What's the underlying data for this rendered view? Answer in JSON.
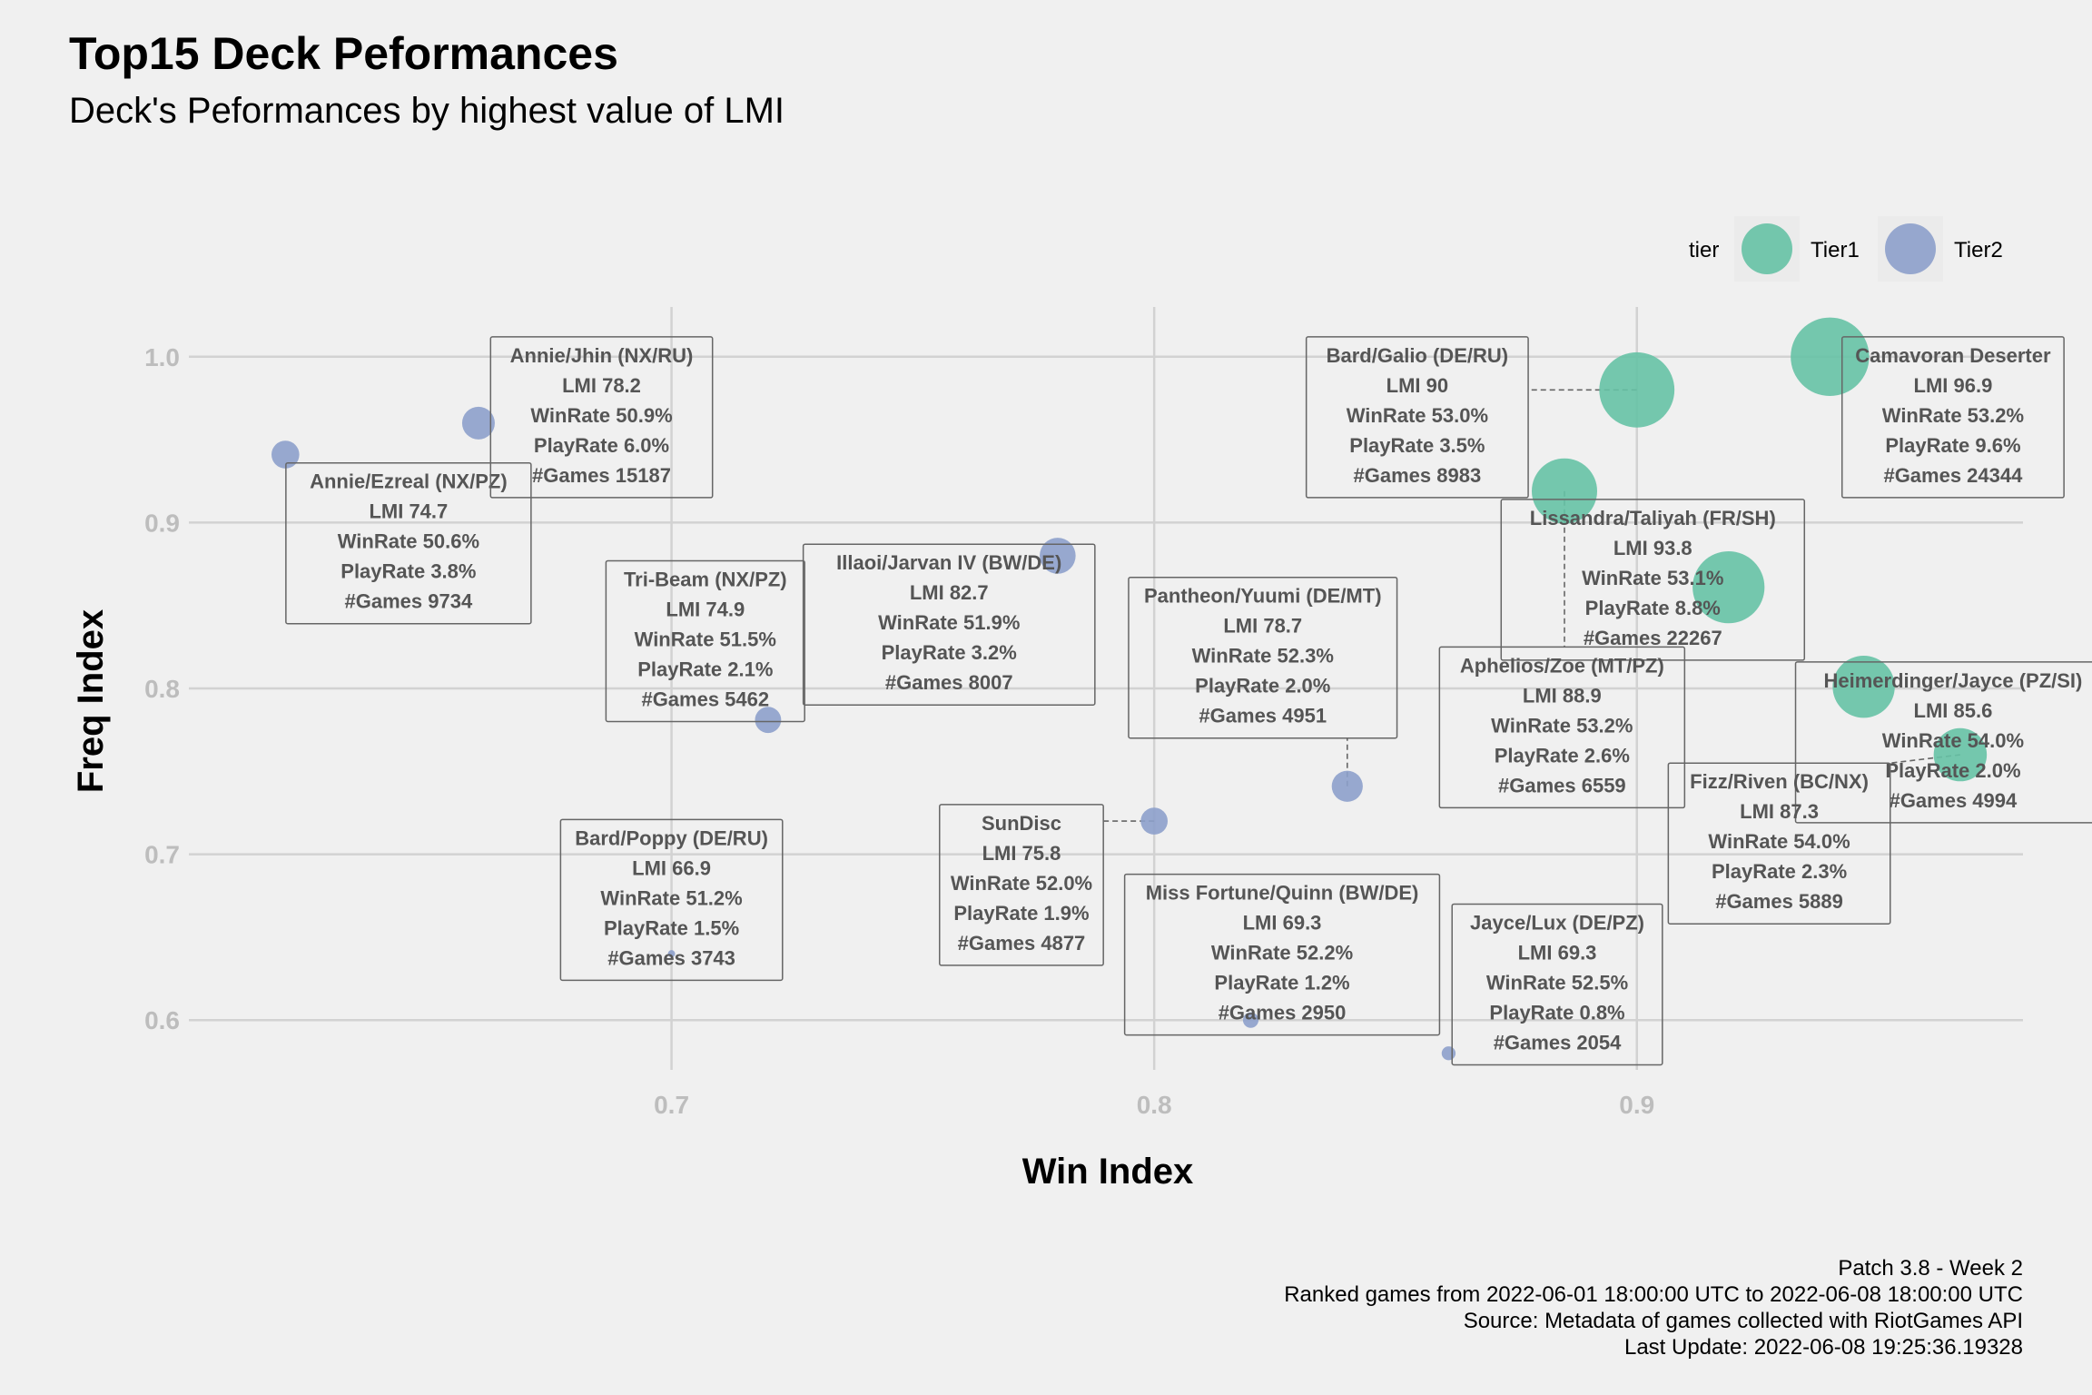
{
  "chart_data": {
    "type": "scatter",
    "title": "Top15 Deck Peformances",
    "subtitle": "Deck's Peformances by highest value of LMI",
    "xlabel": "Win Index",
    "ylabel": "Freq Index",
    "xlim": [
      0.6,
      0.98
    ],
    "ylim": [
      0.57,
      1.03
    ],
    "xticks": [
      0.7,
      0.8,
      0.9
    ],
    "yticks": [
      0.6,
      0.7,
      0.8,
      0.9,
      1.0
    ],
    "xtick_labels": [
      "0.7",
      "0.8",
      "0.9"
    ],
    "ytick_labels": [
      "0.6",
      "0.7",
      "0.8",
      "0.9",
      "1.0"
    ],
    "grid": true,
    "legend": {
      "title": "tier",
      "placement": "top-right",
      "items": [
        {
          "name": "Tier1",
          "color": "#66c2a5"
        },
        {
          "name": "Tier2",
          "color": "#8da0cb"
        }
      ]
    },
    "size_variable": "PlayRate",
    "points": [
      {
        "deck": "Camavoran Deserter",
        "tier": "Tier1",
        "x": 0.94,
        "y": 1.0,
        "lmi": "LMI 96.9",
        "winrate": "WinRate 53.2%",
        "playrate": "PlayRate 9.6%",
        "games": "#Games 24344",
        "size": 9.6,
        "lx": 0.9655,
        "ly": 0.9635
      },
      {
        "deck": "Bard/Galio (DE/RU)",
        "tier": "Tier1",
        "x": 0.9,
        "y": 0.98,
        "lmi": "LMI 90",
        "winrate": "WinRate 53.0%",
        "playrate": "PlayRate 3.5%",
        "games": "#Games 8983",
        "size": 9.2,
        "lx": 0.8545,
        "ly": 0.9635
      },
      {
        "deck": "Lissandra/Taliyah (FR/SH)",
        "tier": "Tier1",
        "x": 0.919,
        "y": 0.861,
        "lmi": "LMI 93.8",
        "winrate": "WinRate 53.1%",
        "playrate": "PlayRate 8.8%",
        "games": "#Games 22267",
        "size": 8.8,
        "lx": 0.9033,
        "ly": 0.8655
      },
      {
        "deck": "Heimerdinger/Jayce (PZ/SI)",
        "tier": "Tier1",
        "x": 0.947,
        "y": 0.801,
        "lmi": "LMI 85.6",
        "winrate": "WinRate 54.0%",
        "playrate": "PlayRate 2.0%",
        "games": "#Games 4994",
        "size": 7.6,
        "lx": 0.9655,
        "ly": 0.7675
      },
      {
        "deck": "Aphelios/Zoe (MT/PZ)",
        "tier": "Tier1",
        "x": 0.885,
        "y": 0.919,
        "lmi": "LMI 88.9",
        "winrate": "WinRate 53.2%",
        "playrate": "PlayRate 2.6%",
        "games": "#Games 6559",
        "size": 8.0,
        "lx": 0.8845,
        "ly": 0.7765
      },
      {
        "deck": "Fizz/Riven (BC/NX)",
        "tier": "Tier1",
        "x": 0.967,
        "y": 0.76,
        "lmi": "LMI 87.3",
        "winrate": "WinRate 54.0%",
        "playrate": "PlayRate 2.3%",
        "games": "#Games 5889",
        "size": 6.5,
        "lx": 0.9295,
        "ly": 0.7065
      },
      {
        "deck": "Annie/Ezreal (NX/PZ)",
        "tier": "Tier2",
        "x": 0.62,
        "y": 0.941,
        "lmi": "LMI 74.7",
        "winrate": "WinRate 50.6%",
        "playrate": "PlayRate 3.8%",
        "games": "#Games 9734",
        "size": 3.4,
        "lx": 0.6455,
        "ly": 0.8875
      },
      {
        "deck": "Annie/Jhin (NX/RU)",
        "tier": "Tier2",
        "x": 0.66,
        "y": 0.96,
        "lmi": "LMI 78.2",
        "winrate": "WinRate 50.9%",
        "playrate": "PlayRate 6.0%",
        "games": "#Games 15187",
        "size": 4.0,
        "lx": 0.6855,
        "ly": 0.9635
      },
      {
        "deck": "Tri-Beam (NX/PZ)",
        "tier": "Tier2",
        "x": 0.72,
        "y": 0.781,
        "lmi": "LMI 74.9",
        "winrate": "WinRate 51.5%",
        "playrate": "PlayRate 2.1%",
        "games": "#Games 5462",
        "size": 3.2,
        "lx": 0.707,
        "ly": 0.8285
      },
      {
        "deck": "Illaoi/Jarvan IV (BW/DE)",
        "tier": "Tier2",
        "x": 0.78,
        "y": 0.88,
        "lmi": "LMI 82.7",
        "winrate": "WinRate 51.9%",
        "playrate": "PlayRate 3.2%",
        "games": "#Games 8007",
        "size": 4.4,
        "lx": 0.7575,
        "ly": 0.8385
      },
      {
        "deck": "Pantheon/Yuumi (DE/MT)",
        "tier": "Tier2",
        "x": 0.84,
        "y": 0.741,
        "lmi": "LMI 78.7",
        "winrate": "WinRate 52.3%",
        "playrate": "PlayRate 2.0%",
        "games": "#Games 4951",
        "size": 3.8,
        "lx": 0.8225,
        "ly": 0.8185
      },
      {
        "deck": "SunDisc",
        "tier": "Tier2",
        "x": 0.8,
        "y": 0.72,
        "lmi": "LMI 75.8",
        "winrate": "WinRate 52.0%",
        "playrate": "PlayRate 1.9%",
        "games": "#Games 4877",
        "size": 3.3,
        "lx": 0.7725,
        "ly": 0.6815
      },
      {
        "deck": "Bard/Poppy (DE/RU)",
        "tier": "Tier2",
        "x": 0.7,
        "y": 0.64,
        "lmi": "LMI 66.9",
        "winrate": "WinRate 51.2%",
        "playrate": "PlayRate 1.5%",
        "games": "#Games 3743",
        "size": 0.4,
        "lx": 0.7,
        "ly": 0.6725
      },
      {
        "deck": "Miss Fortune/Quinn (BW/DE)",
        "tier": "Tier2",
        "x": 0.82,
        "y": 0.6,
        "lmi": "LMI 69.3",
        "winrate": "WinRate 52.2%",
        "playrate": "PlayRate 1.2%",
        "games": "#Games 2950",
        "size": 1.9,
        "lx": 0.8265,
        "ly": 0.6395
      },
      {
        "deck": "Jayce/Lux (DE/PZ)",
        "tier": "Tier2",
        "x": 0.861,
        "y": 0.58,
        "lmi": "LMI 69.3",
        "winrate": "WinRate 52.5%",
        "playrate": "PlayRate 0.8%",
        "games": "#Games 2054",
        "size": 1.7,
        "lx": 0.8835,
        "ly": 0.6215
      }
    ]
  },
  "caption": [
    "Patch 3.8 - Week 2",
    "Ranked games from 2022-06-01 18:00:00 UTC to 2022-06-08 18:00:00 UTC",
    "Source: Metadata of games collected with RiotGames API",
    "Last Update: 2022-06-08 19:25:36.19328"
  ]
}
